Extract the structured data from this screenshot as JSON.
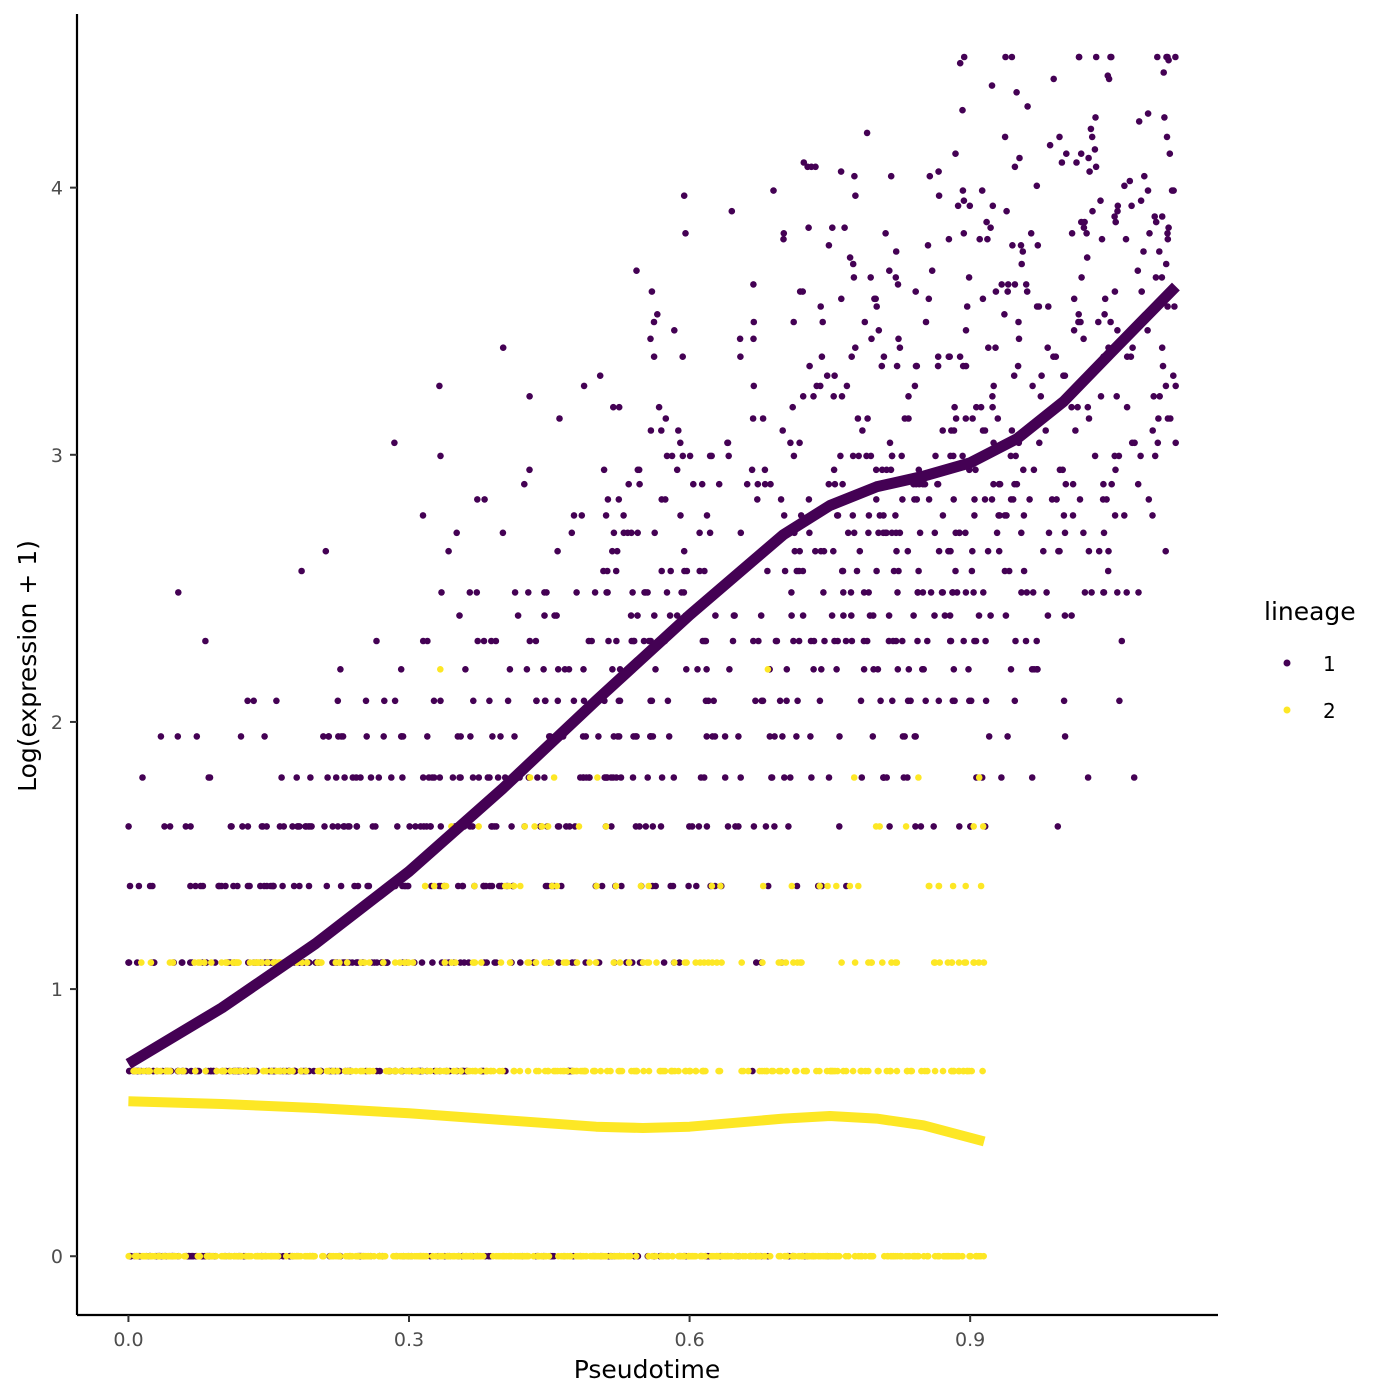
{
  "chart_data": {
    "type": "scatter",
    "title": "",
    "xlabel": "Pseudotime",
    "ylabel": "Log(expression + 1)",
    "xlim": [
      -0.055,
      1.165
    ],
    "ylim": [
      -0.22,
      4.65
    ],
    "x_ticks": [
      {
        "value": 0.0,
        "label": "0.0"
      },
      {
        "value": 0.3,
        "label": "0.3"
      },
      {
        "value": 0.6,
        "label": "0.6"
      },
      {
        "value": 0.9,
        "label": "0.9"
      }
    ],
    "y_ticks": [
      {
        "value": 0,
        "label": "0"
      },
      {
        "value": 1,
        "label": "1"
      },
      {
        "value": 2,
        "label": "2"
      },
      {
        "value": 3,
        "label": "3"
      },
      {
        "value": 4,
        "label": "4"
      }
    ],
    "grid": false,
    "legend": {
      "title": "lineage",
      "placement": "right",
      "entries": [
        {
          "label": "1",
          "color": "#440154"
        },
        {
          "label": "2",
          "color": "#FDE725"
        }
      ]
    },
    "point_levels": [
      0,
      0.693,
      1.099,
      1.386,
      1.609,
      1.792,
      1.946,
      2.079,
      2.197,
      2.303,
      2.398,
      2.485,
      2.565,
      2.639,
      2.708,
      2.773,
      2.833,
      2.89,
      2.944,
      2.996,
      3.045,
      3.091,
      3.136,
      3.178,
      3.219,
      3.258,
      3.296,
      3.332,
      3.367,
      3.401,
      3.434,
      3.466,
      3.497,
      3.526,
      3.555,
      3.584,
      3.611,
      3.638,
      3.664,
      3.689,
      3.714,
      3.738,
      3.761,
      3.784,
      3.807,
      3.829,
      3.85,
      3.871,
      3.892,
      3.912,
      3.932,
      3.951,
      3.97,
      3.989,
      4.007,
      4.025,
      4.043,
      4.06,
      4.078,
      4.094,
      4.111,
      4.127,
      4.143,
      4.159,
      4.174,
      4.19,
      4.205,
      4.22,
      4.234,
      4.248,
      4.263,
      4.277,
      4.29,
      4.304,
      4.317,
      4.331,
      4.344,
      4.357,
      4.369,
      4.382,
      4.394,
      4.407,
      4.419,
      4.431,
      4.443,
      4.454,
      4.466,
      4.477,
      4.489
    ],
    "series": [
      {
        "name": "1",
        "color": "#440154",
        "x_range": [
          0.0,
          1.12
        ],
        "smooth_fit": [
          {
            "x": 0.0,
            "y": 0.72
          },
          {
            "x": 0.1,
            "y": 0.93
          },
          {
            "x": 0.2,
            "y": 1.17
          },
          {
            "x": 0.3,
            "y": 1.44
          },
          {
            "x": 0.4,
            "y": 1.75
          },
          {
            "x": 0.5,
            "y": 2.08
          },
          {
            "x": 0.6,
            "y": 2.4
          },
          {
            "x": 0.7,
            "y": 2.7
          },
          {
            "x": 0.75,
            "y": 2.81
          },
          {
            "x": 0.8,
            "y": 2.88
          },
          {
            "x": 0.85,
            "y": 2.92
          },
          {
            "x": 0.9,
            "y": 2.97
          },
          {
            "x": 0.95,
            "y": 3.06
          },
          {
            "x": 1.0,
            "y": 3.2
          },
          {
            "x": 1.05,
            "y": 3.38
          },
          {
            "x": 1.12,
            "y": 3.63
          }
        ]
      },
      {
        "name": "2",
        "color": "#FDE725",
        "x_range": [
          0.0,
          0.915
        ],
        "smooth_fit": [
          {
            "x": 0.0,
            "y": 0.58
          },
          {
            "x": 0.1,
            "y": 0.57
          },
          {
            "x": 0.2,
            "y": 0.555
          },
          {
            "x": 0.3,
            "y": 0.535
          },
          {
            "x": 0.4,
            "y": 0.51
          },
          {
            "x": 0.5,
            "y": 0.485
          },
          {
            "x": 0.55,
            "y": 0.48
          },
          {
            "x": 0.6,
            "y": 0.485
          },
          {
            "x": 0.65,
            "y": 0.5
          },
          {
            "x": 0.7,
            "y": 0.515
          },
          {
            "x": 0.75,
            "y": 0.525
          },
          {
            "x": 0.8,
            "y": 0.515
          },
          {
            "x": 0.85,
            "y": 0.49
          },
          {
            "x": 0.915,
            "y": 0.43
          }
        ]
      }
    ]
  }
}
